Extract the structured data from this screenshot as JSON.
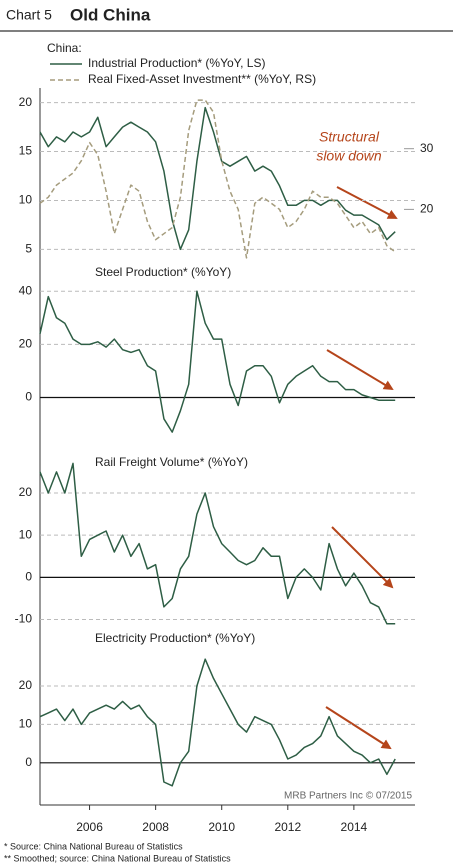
{
  "header": {
    "chart_number": "Chart 5",
    "title": "Old China"
  },
  "chart_data": [
    {
      "type": "line",
      "legend_title": "China:",
      "annotation": [
        "Structural",
        "slow down"
      ],
      "x": [
        2004.5,
        2004.75,
        2005,
        2005.25,
        2005.5,
        2005.75,
        2006,
        2006.25,
        2006.5,
        2006.75,
        2007,
        2007.25,
        2007.5,
        2007.75,
        2008,
        2008.25,
        2008.5,
        2008.75,
        2009,
        2009.25,
        2009.5,
        2009.75,
        2010,
        2010.25,
        2010.5,
        2010.75,
        2011,
        2011.25,
        2011.5,
        2011.75,
        2012,
        2012.25,
        2012.5,
        2012.75,
        2013,
        2013.25,
        2013.5,
        2013.75,
        2014,
        2014.25,
        2014.5,
        2014.75,
        2015,
        2015.25
      ],
      "xlim": [
        2004.5,
        2015.85
      ],
      "ylim": [
        3.5,
        21.5
      ],
      "yticks": [
        5,
        10,
        15,
        20
      ],
      "y2lim": [
        11,
        40
      ],
      "y2ticks": [
        20,
        30
      ],
      "grid": true,
      "series": [
        {
          "name": "Industrial Production* (%YoY, LS)",
          "color": "#2e5e45",
          "style": "solid",
          "values": [
            17,
            15.5,
            16.5,
            16,
            17,
            16.5,
            17,
            18.5,
            15.5,
            16.5,
            17.5,
            18,
            17.5,
            17,
            16,
            13,
            8,
            5,
            7,
            14,
            19.5,
            17,
            14,
            13.5,
            14,
            14.5,
            13,
            13.5,
            13,
            11.5,
            9.5,
            9.5,
            10,
            10,
            9.5,
            10,
            10,
            9,
            8.5,
            8.5,
            8,
            7.5,
            6,
            6.8
          ]
        },
        {
          "name": "Real Fixed-Asset Investment** (%YoY, RS)",
          "color": "#a59c7d",
          "style": "dashed",
          "axis": "y2",
          "values": [
            21,
            22,
            24,
            25,
            26,
            28,
            31,
            29,
            23,
            16,
            20,
            24,
            23,
            18,
            15,
            16,
            17,
            22,
            33,
            38,
            38,
            36,
            28,
            23,
            20,
            12,
            21,
            22,
            21,
            20,
            17,
            18,
            20,
            23,
            22,
            22,
            21,
            19,
            17,
            18,
            16,
            17,
            14,
            13
          ]
        }
      ]
    },
    {
      "type": "line",
      "title": "Steel Production* (%YoY)",
      "color": "#2e5e45",
      "zero_line": true,
      "x": [
        2004.5,
        2004.75,
        2005,
        2005.25,
        2005.5,
        2005.75,
        2006,
        2006.25,
        2006.5,
        2006.75,
        2007,
        2007.25,
        2007.5,
        2007.75,
        2008,
        2008.25,
        2008.5,
        2008.75,
        2009,
        2009.25,
        2009.5,
        2009.75,
        2010,
        2010.25,
        2010.5,
        2010.75,
        2011,
        2011.25,
        2011.5,
        2011.75,
        2012,
        2012.25,
        2012.5,
        2012.75,
        2013,
        2013.25,
        2013.5,
        2013.75,
        2014,
        2014.25,
        2014.5,
        2014.75,
        2015,
        2015.25
      ],
      "xlim": [
        2004.5,
        2015.85
      ],
      "ylim": [
        -19,
        45
      ],
      "yticks": [
        0,
        20,
        40
      ],
      "grid": true,
      "values": [
        24,
        38,
        30,
        28,
        22,
        20,
        20,
        21,
        19,
        22,
        18,
        17,
        18,
        12,
        10,
        -8,
        -13,
        -5,
        5,
        40,
        28,
        22,
        22,
        5,
        -3,
        10,
        12,
        12,
        8,
        -2,
        5,
        8,
        10,
        12,
        8,
        6,
        6,
        3,
        3,
        1,
        0,
        -1,
        -1,
        -1
      ]
    },
    {
      "type": "line",
      "title": "Rail Freight Volume* (%YoY)",
      "color": "#2e5e45",
      "zero_line": true,
      "x": [
        2004.5,
        2004.75,
        2005,
        2005.25,
        2005.5,
        2005.75,
        2006,
        2006.25,
        2006.5,
        2006.75,
        2007,
        2007.25,
        2007.5,
        2007.75,
        2008,
        2008.25,
        2008.5,
        2008.75,
        2009,
        2009.25,
        2009.5,
        2009.75,
        2010,
        2010.25,
        2010.5,
        2010.75,
        2011,
        2011.25,
        2011.5,
        2011.75,
        2012,
        2012.25,
        2012.5,
        2012.75,
        2013,
        2013.25,
        2013.5,
        2013.75,
        2014,
        2014.25,
        2014.5,
        2014.75,
        2015,
        2015.25
      ],
      "xlim": [
        2004.5,
        2015.85
      ],
      "ylim": [
        -12,
        29
      ],
      "yticks": [
        -10,
        0,
        10,
        20
      ],
      "grid": true,
      "values": [
        25,
        20,
        25,
        20,
        27,
        5,
        9,
        10,
        11,
        6,
        10,
        5,
        8,
        2,
        3,
        -7,
        -5,
        2,
        5,
        15,
        20,
        12,
        8,
        6,
        4,
        3,
        4,
        7,
        5,
        5,
        -5,
        0,
        2,
        0,
        -3,
        8,
        2,
        -2,
        1,
        -2,
        -6,
        -7,
        -11,
        -11
      ]
    },
    {
      "type": "line",
      "title": "Electricity Production* (%YoY)",
      "color": "#2e5e45",
      "zero_line": true,
      "x": [
        2004.5,
        2004.75,
        2005,
        2005.25,
        2005.5,
        2005.75,
        2006,
        2006.25,
        2006.5,
        2006.75,
        2007,
        2007.25,
        2007.5,
        2007.75,
        2008,
        2008.25,
        2008.5,
        2008.75,
        2009,
        2009.25,
        2009.5,
        2009.75,
        2010,
        2010.25,
        2010.5,
        2010.75,
        2011,
        2011.25,
        2011.5,
        2011.75,
        2012,
        2012.25,
        2012.5,
        2012.75,
        2013,
        2013.25,
        2013.5,
        2013.75,
        2014,
        2014.25,
        2014.5,
        2014.75,
        2015,
        2015.25
      ],
      "xlim": [
        2004.5,
        2015.85
      ],
      "ylim": [
        -11,
        32
      ],
      "yticks": [
        0,
        10,
        20
      ],
      "xticks": [
        2006,
        2008,
        2010,
        2012,
        2014
      ],
      "grid": true,
      "values": [
        12,
        13,
        14,
        11,
        14,
        10,
        13,
        14,
        15,
        14,
        16,
        14,
        15,
        12,
        10,
        -5,
        -6,
        0,
        3,
        20,
        27,
        22,
        18,
        14,
        10,
        8,
        12,
        11,
        10,
        6,
        1,
        2,
        4,
        5,
        7,
        12,
        7,
        5,
        3,
        2,
        0,
        1,
        -3,
        1
      ]
    }
  ],
  "footer": {
    "credit": "MRB Partners Inc © 07/2015",
    "notes": [
      "*  Source: China National Bureau of Statistics",
      "** Smoothed; source: China National Bureau of Statistics"
    ]
  }
}
